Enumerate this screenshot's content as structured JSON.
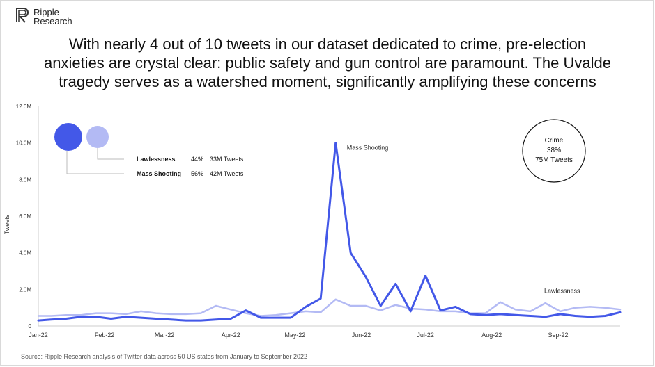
{
  "brand": {
    "line1": "Ripple",
    "line2": "Research"
  },
  "headline": {
    "line1": "With nearly 4 out of 10 tweets in our dataset dedicated to crime, pre-election",
    "line2": "anxieties are crystal clear: public safety and gun control are paramount. The Uvalde",
    "line3": "tragedy serves as a watershed moment, significantly amplifying these concerns"
  },
  "source": "Source: Ripple Research analysis of Twitter data across 50 US states from January to September 2022",
  "colors": {
    "mass_shooting": "#4358e8",
    "lawlessness": "#b3baf4",
    "axis": "#cccccc"
  },
  "chart_data": {
    "type": "line",
    "title": "",
    "xlabel": "",
    "ylabel": "Tweets",
    "ylim": [
      0,
      12000000
    ],
    "yticks": [
      0,
      2000000,
      4000000,
      6000000,
      8000000,
      10000000,
      12000000
    ],
    "ytick_labels": [
      "0",
      "2.0M",
      "4.0M",
      "6.0M",
      "8.0M",
      "10.0M",
      "12.0M"
    ],
    "xlim": [
      "2022-01-01",
      "2022-09-30"
    ],
    "xticks": [
      "2022-01-01",
      "2022-02-01",
      "2022-03-01",
      "2022-04-01",
      "2022-05-01",
      "2022-06-01",
      "2022-07-01",
      "2022-08-01",
      "2022-09-01"
    ],
    "xtick_labels": [
      "Jan-22",
      "Feb-22",
      "Mar-22",
      "Apr-22",
      "May-22",
      "Jun-22",
      "Jul-22",
      "Aug-22",
      "Sep-22"
    ],
    "grid": false,
    "series": [
      {
        "name": "Mass Shooting",
        "color": "#4358e8",
        "x": [
          "2022-01-01",
          "2022-01-07",
          "2022-01-14",
          "2022-01-21",
          "2022-01-28",
          "2022-02-04",
          "2022-02-11",
          "2022-02-18",
          "2022-02-25",
          "2022-03-04",
          "2022-03-11",
          "2022-03-18",
          "2022-03-25",
          "2022-04-01",
          "2022-04-08",
          "2022-04-15",
          "2022-04-22",
          "2022-04-29",
          "2022-05-06",
          "2022-05-13",
          "2022-05-20",
          "2022-05-27",
          "2022-06-03",
          "2022-06-10",
          "2022-06-17",
          "2022-06-24",
          "2022-07-01",
          "2022-07-08",
          "2022-07-15",
          "2022-07-22",
          "2022-07-29",
          "2022-08-05",
          "2022-08-12",
          "2022-08-19",
          "2022-08-26",
          "2022-09-02",
          "2022-09-09",
          "2022-09-16",
          "2022-09-23",
          "2022-09-30"
        ],
        "y": [
          300000,
          350000,
          400000,
          500000,
          500000,
          400000,
          500000,
          450000,
          400000,
          350000,
          300000,
          300000,
          350000,
          400000,
          850000,
          450000,
          450000,
          450000,
          1050000,
          1500000,
          10000000,
          4000000,
          2700000,
          1100000,
          2300000,
          800000,
          2750000,
          850000,
          1050000,
          650000,
          600000,
          650000,
          600000,
          550000,
          500000,
          650000,
          550000,
          500000,
          550000,
          750000
        ]
      },
      {
        "name": "Lawlessness",
        "color": "#b3baf4",
        "x": [
          "2022-01-01",
          "2022-01-07",
          "2022-01-14",
          "2022-01-21",
          "2022-01-28",
          "2022-02-04",
          "2022-02-11",
          "2022-02-18",
          "2022-02-25",
          "2022-03-04",
          "2022-03-11",
          "2022-03-18",
          "2022-03-25",
          "2022-04-01",
          "2022-04-08",
          "2022-04-15",
          "2022-04-22",
          "2022-04-29",
          "2022-05-06",
          "2022-05-13",
          "2022-05-20",
          "2022-05-27",
          "2022-06-03",
          "2022-06-10",
          "2022-06-17",
          "2022-06-24",
          "2022-07-01",
          "2022-07-08",
          "2022-07-15",
          "2022-07-22",
          "2022-07-29",
          "2022-08-05",
          "2022-08-12",
          "2022-08-19",
          "2022-08-26",
          "2022-09-02",
          "2022-09-09",
          "2022-09-16",
          "2022-09-23",
          "2022-09-30"
        ],
        "y": [
          550000,
          550000,
          600000,
          600000,
          700000,
          700000,
          650000,
          800000,
          700000,
          650000,
          650000,
          700000,
          1100000,
          900000,
          700000,
          550000,
          600000,
          700000,
          800000,
          750000,
          1450000,
          1100000,
          1100000,
          850000,
          1150000,
          950000,
          900000,
          800000,
          800000,
          700000,
          700000,
          1300000,
          900000,
          800000,
          1250000,
          800000,
          1000000,
          1050000,
          1000000,
          900000
        ]
      }
    ],
    "annotations": [
      {
        "text": "Mass Shooting",
        "x": "2022-05-20",
        "y": 10000000
      },
      {
        "text": "Lawlessness",
        "x": "2022-09-01",
        "y": 1500000
      }
    ],
    "legend": {
      "placement": "top-left",
      "entries": [
        {
          "name": "Lawlessness",
          "share": "44%",
          "count": "33M Tweets",
          "color": "#b3baf4"
        },
        {
          "name": "Mass Shooting",
          "share": "56%",
          "count": "42M Tweets",
          "color": "#4358e8"
        }
      ]
    },
    "callout": {
      "label": "Crime",
      "share": "38%",
      "count": "75M Tweets"
    }
  }
}
